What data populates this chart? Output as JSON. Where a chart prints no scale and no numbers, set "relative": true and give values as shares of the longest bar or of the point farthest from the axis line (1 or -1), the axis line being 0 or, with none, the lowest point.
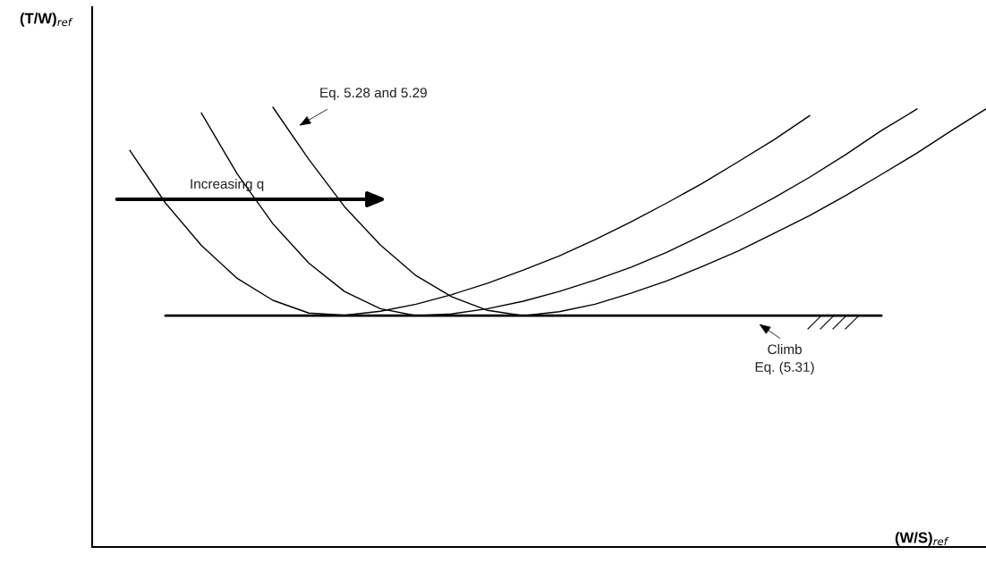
{
  "chart_data": {
    "type": "line",
    "relative": true,
    "xlabel": "(W/S)$_{ref}$",
    "categories": [
      null,
      null,
      null,
      null,
      null,
      null,
      null,
      null,
      null,
      null,
      null,
      null,
      null,
      null,
      null,
      null,
      null,
      null,
      null,
      null,
      null,
      null,
      null,
      null,
      null,
      null
    ],
    "series": [
      {
        "color": "#000000",
        "values": [
          null,
          0.902,
          0.782,
          0.686,
          0.611,
          0.561,
          0.532,
          0.527,
          0.536,
          0.552,
          0.574,
          0.6,
          0.63,
          0.662,
          0.699,
          0.739,
          0.782,
          0.827,
          0.876,
          0.926,
          0.981,
          null,
          null,
          null,
          null,
          null
        ]
      },
      {
        "color": "#000000",
        "values": [
          null,
          null,
          null,
          0.987,
          0.849,
          0.735,
          0.646,
          0.581,
          0.542,
          0.526,
          0.53,
          0.542,
          0.559,
          0.581,
          0.607,
          0.636,
          0.67,
          0.709,
          0.75,
          0.794,
          0.841,
          0.892,
          0.947,
          0.996,
          null,
          null
        ]
      },
      {
        "color": "#000000",
        "values": [
          null,
          null,
          null,
          null,
          null,
          1.0,
          0.882,
          0.774,
          0.687,
          0.617,
          0.569,
          0.538,
          0.526,
          0.535,
          0.552,
          0.577,
          0.605,
          0.638,
          0.673,
          0.713,
          0.754,
          0.799,
          0.847,
          0.896,
          0.949,
          1.0
        ]
      },
      {
        "color": "#000000",
        "values": [
          null,
          null,
          0.526,
          0.526,
          0.526,
          0.526,
          0.526,
          0.526,
          0.526,
          0.526,
          0.526,
          0.526,
          0.526,
          0.526,
          0.526,
          0.526,
          0.526,
          0.526,
          0.526,
          0.526,
          0.526,
          0.526,
          0.526,
          null,
          null,
          null
        ]
      }
    ],
    "annotations": [
      "(T/W)$_{ref}$",
      "Eq. 5.28 and 5.29",
      "Increasing q",
      "Climb\nEq. (5.31)"
    ],
    "legend": false,
    "marker": "none",
    "line_style": "solid"
  }
}
